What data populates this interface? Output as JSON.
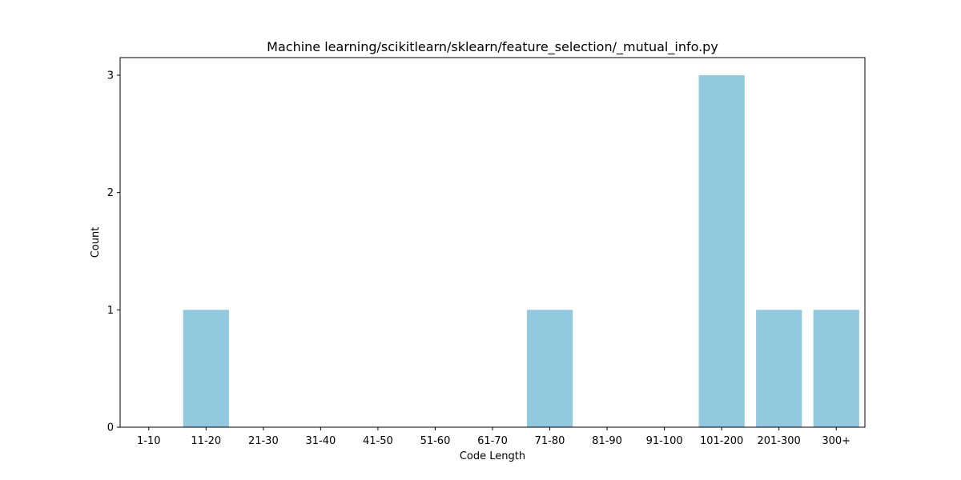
{
  "chart_data": {
    "type": "bar",
    "title": "Machine learning/scikitlearn/sklearn/feature_selection/_mutual_info.py",
    "xlabel": "Code Length",
    "ylabel": "Count",
    "categories": [
      "1-10",
      "11-20",
      "21-30",
      "31-40",
      "41-50",
      "51-60",
      "61-70",
      "71-80",
      "81-90",
      "91-100",
      "101-200",
      "201-300",
      "300+"
    ],
    "values": [
      0,
      1,
      0,
      0,
      0,
      0,
      0,
      1,
      0,
      0,
      3,
      1,
      1
    ],
    "ylim": [
      0,
      3.15
    ],
    "yticks": [
      0,
      1,
      2,
      3
    ],
    "grid": false,
    "legend": "none",
    "bar_color": "#92c9de"
  }
}
